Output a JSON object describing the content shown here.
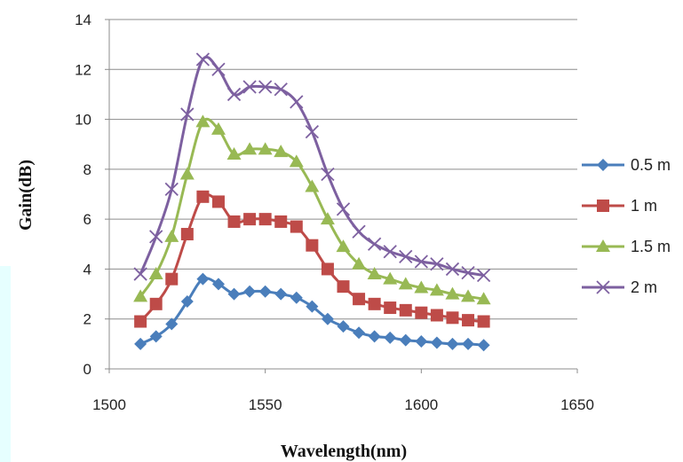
{
  "chart_data": {
    "type": "line",
    "title": "",
    "xlabel": "Wavelength(nm)",
    "ylabel": "Gain(dB)",
    "xlim": [
      1500,
      1650
    ],
    "ylim": [
      0,
      14
    ],
    "xticks": [
      1500,
      1550,
      1600,
      1650
    ],
    "yticks": [
      0,
      2,
      4,
      6,
      8,
      10,
      12,
      14
    ],
    "grid": "horizontal",
    "legend_position": "right",
    "x": [
      1510,
      1515,
      1520,
      1525,
      1530,
      1535,
      1540,
      1545,
      1550,
      1555,
      1560,
      1565,
      1570,
      1575,
      1580,
      1585,
      1590,
      1595,
      1600,
      1605,
      1610,
      1615,
      1620
    ],
    "series": [
      {
        "name": "0.5 m",
        "color": "#4a7ebb",
        "marker": "diamond",
        "values": [
          1.0,
          1.3,
          1.8,
          2.7,
          3.6,
          3.4,
          3.0,
          3.1,
          3.1,
          3.0,
          2.85,
          2.5,
          2.0,
          1.7,
          1.45,
          1.3,
          1.25,
          1.15,
          1.1,
          1.05,
          1.0,
          1.0,
          0.95
        ]
      },
      {
        "name": "1 m",
        "color": "#be4b48",
        "marker": "square",
        "values": [
          1.9,
          2.6,
          3.6,
          5.4,
          6.9,
          6.7,
          5.9,
          6.0,
          6.0,
          5.9,
          5.7,
          4.95,
          4.0,
          3.3,
          2.8,
          2.6,
          2.45,
          2.35,
          2.25,
          2.15,
          2.05,
          1.95,
          1.9
        ]
      },
      {
        "name": "1.5 m",
        "color": "#98b954",
        "marker": "triangle",
        "values": [
          2.9,
          3.8,
          5.3,
          7.8,
          9.9,
          9.6,
          8.6,
          8.8,
          8.8,
          8.7,
          8.3,
          7.3,
          6.0,
          4.9,
          4.2,
          3.8,
          3.6,
          3.4,
          3.25,
          3.15,
          3.0,
          2.9,
          2.8
        ]
      },
      {
        "name": "2 m",
        "color": "#7d60a0",
        "marker": "x",
        "values": [
          3.8,
          5.3,
          7.2,
          10.2,
          12.4,
          12.0,
          11.0,
          11.3,
          11.3,
          11.2,
          10.7,
          9.5,
          7.8,
          6.4,
          5.5,
          5.0,
          4.7,
          4.5,
          4.3,
          4.2,
          4.0,
          3.85,
          3.75
        ]
      }
    ]
  }
}
